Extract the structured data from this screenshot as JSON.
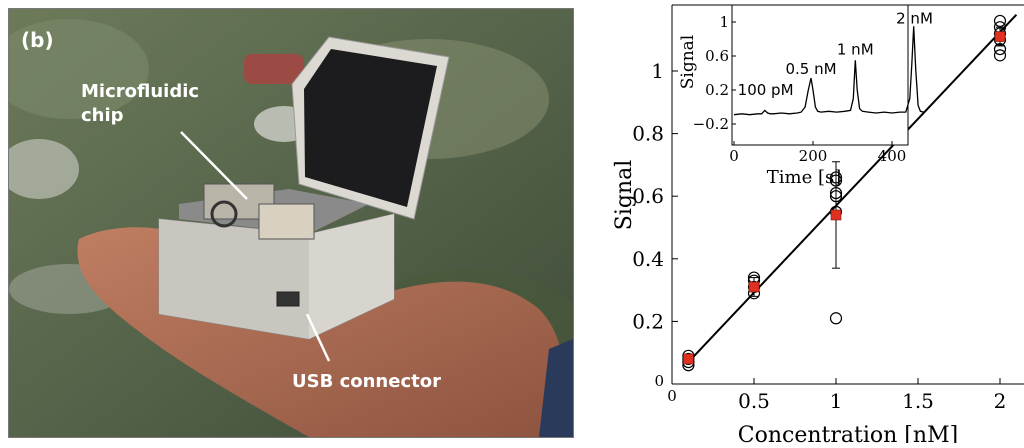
{
  "figure": {
    "panel_label": "(b)",
    "photo": {
      "annotations": {
        "chip": [
          "Microfluidic",
          "chip"
        ],
        "usb": "USB connector"
      }
    }
  },
  "chart_data": [
    {
      "type": "scatter",
      "title": "",
      "xlabel": "Concentration [nM]",
      "ylabel": "Signal",
      "xlim": [
        0,
        2.1
      ],
      "ylim": [
        0,
        1.2
      ],
      "xticks": [
        0,
        0.5,
        1,
        1.5,
        2
      ],
      "xtick_labels": [
        "0",
        "0.5",
        "1",
        "1.5",
        "2"
      ],
      "yticks": [
        0,
        0.2,
        0.4,
        0.6,
        0.8,
        1
      ],
      "ytick_labels": [
        "0",
        "0.2",
        "0.4",
        "0.6",
        "0.8",
        "1"
      ],
      "grid": false,
      "series": [
        {
          "marker": "open-circle",
          "color": "#000000",
          "points": [
            [
              0.1,
              0.06
            ],
            [
              0.1,
              0.08
            ],
            [
              0.1,
              0.07
            ],
            [
              0.1,
              0.09
            ],
            [
              0.5,
              0.29
            ],
            [
              0.5,
              0.31
            ],
            [
              0.5,
              0.33
            ],
            [
              0.5,
              0.34
            ],
            [
              1,
              0.21
            ],
            [
              1,
              0.55
            ],
            [
              1,
              0.6
            ],
            [
              1,
              0.61
            ],
            [
              1,
              0.65
            ],
            [
              1,
              0.66
            ],
            [
              2,
              1.1
            ],
            [
              2,
              1.12
            ],
            [
              2,
              1.14
            ],
            [
              2,
              1.16
            ],
            [
              2,
              1.05
            ],
            [
              2,
              1.07
            ]
          ]
        },
        {
          "marker": "filled-square",
          "color": "#e03020",
          "points": [
            [
              0.1,
              0.08
            ],
            [
              0.5,
              0.31
            ],
            [
              1,
              0.54
            ],
            [
              2,
              1.11
            ]
          ],
          "errors": [
            0.01,
            0.03,
            0.17,
            0.03
          ]
        }
      ],
      "fit_line": {
        "points": [
          [
            0.1,
            0.07
          ],
          [
            2.1,
            1.18
          ]
        ],
        "color": "#000000"
      }
    },
    {
      "type": "line",
      "title": "",
      "xlabel": "Time [s]",
      "ylabel": "Signal",
      "xlim": [
        0,
        480
      ],
      "ylim": [
        -0.25,
        1.05
      ],
      "xticks": [
        0,
        200,
        400
      ],
      "xtick_labels": [
        "0",
        "200",
        "400"
      ],
      "yticks": [
        -0.2,
        0.2,
        0.6,
        1
      ],
      "ytick_labels": [
        "−0.2",
        "0.2",
        "0.6",
        "1"
      ],
      "annotations": [
        {
          "text": "100 pM",
          "x": 80,
          "y": 0.14
        },
        {
          "text": "0.5 nM",
          "x": 195,
          "y": 0.39
        },
        {
          "text": "1 nM",
          "x": 307,
          "y": 0.62
        },
        {
          "text": "2 nM",
          "x": 457,
          "y": 0.98
        }
      ],
      "series": [
        {
          "color": "#000000",
          "x": [
            0,
            20,
            40,
            60,
            70,
            78,
            85,
            92,
            100,
            120,
            140,
            160,
            170,
            180,
            188,
            195,
            200,
            206,
            212,
            220,
            240,
            260,
            280,
            295,
            302,
            307,
            312,
            318,
            325,
            340,
            360,
            380,
            400,
            420,
            435,
            445,
            450,
            455,
            460,
            466,
            472,
            480
          ],
          "y": [
            -0.09,
            -0.08,
            -0.09,
            -0.08,
            -0.08,
            -0.04,
            -0.07,
            -0.08,
            -0.08,
            -0.07,
            -0.08,
            -0.07,
            -0.06,
            0.0,
            0.2,
            0.34,
            0.2,
            0.0,
            -0.05,
            -0.06,
            -0.05,
            -0.06,
            -0.05,
            -0.04,
            0.1,
            0.55,
            0.2,
            -0.02,
            -0.05,
            -0.06,
            -0.07,
            -0.06,
            -0.07,
            -0.06,
            -0.06,
            0.1,
            0.5,
            0.95,
            0.45,
            0.02,
            -0.05,
            -0.06
          ]
        }
      ]
    }
  ]
}
